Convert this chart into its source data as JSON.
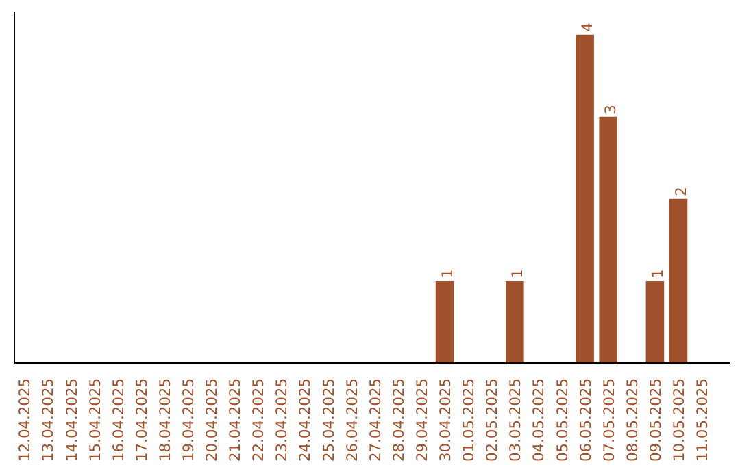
{
  "chart_data": {
    "type": "bar",
    "categories": [
      "12.04.2025",
      "13.04.2025",
      "14.04.2025",
      "15.04.2025",
      "16.04.2025",
      "17.04.2025",
      "18.04.2025",
      "19.04.2025",
      "20.04.2025",
      "21.04.2025",
      "22.04.2025",
      "23.04.2025",
      "24.04.2025",
      "25.04.2025",
      "26.04.2025",
      "27.04.2025",
      "28.04.2025",
      "29.04.2025",
      "30.04.2025",
      "01.05.2025",
      "02.05.2025",
      "03.05.2025",
      "04.05.2025",
      "05.05.2025",
      "06.05.2025",
      "07.05.2025",
      "08.05.2025",
      "09.05.2025",
      "10.05.2025",
      "11.05.2025"
    ],
    "values": [
      null,
      null,
      null,
      null,
      null,
      null,
      null,
      null,
      null,
      null,
      null,
      null,
      null,
      null,
      null,
      null,
      null,
      null,
      1,
      null,
      null,
      1,
      null,
      null,
      4,
      3,
      null,
      1,
      2,
      null
    ],
    "data_labels": true,
    "color": "#a0522d",
    "grid": false,
    "tick_labels": "x"
  }
}
